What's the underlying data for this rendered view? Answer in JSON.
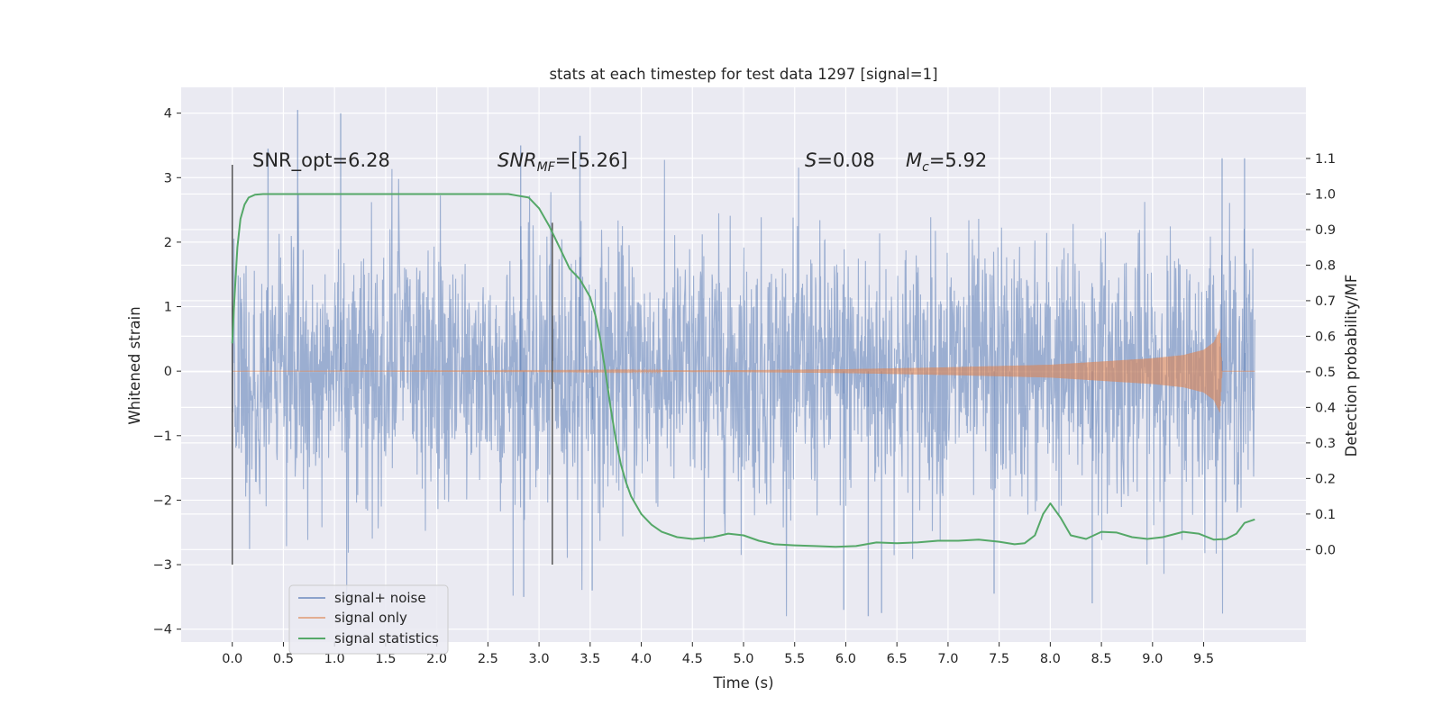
{
  "chart_data": {
    "type": "line",
    "title": "stats at each timestep for test data 1297 [signal=1]",
    "xlabel": "Time (s)",
    "ylabel": "Whitened strain",
    "y2label": "Detection probability/MF",
    "xlim": [
      -0.5,
      10.5
    ],
    "ylim": [
      -4.2,
      4.4
    ],
    "y2lim": [
      -0.26,
      1.3
    ],
    "x_ticks": [
      0.0,
      0.5,
      1.0,
      1.5,
      2.0,
      2.5,
      3.0,
      3.5,
      4.0,
      4.5,
      5.0,
      5.5,
      6.0,
      6.5,
      7.0,
      7.5,
      8.0,
      8.5,
      9.0,
      9.5
    ],
    "x_tick_labels": [
      "0.0",
      "0.5",
      "1.0",
      "1.5",
      "2.0",
      "2.5",
      "3.0",
      "3.5",
      "4.0",
      "4.5",
      "5.0",
      "5.5",
      "6.0",
      "6.5",
      "7.0",
      "7.5",
      "8.0",
      "8.5",
      "9.0",
      "9.5"
    ],
    "y_ticks": [
      4,
      3,
      2,
      1,
      0,
      -1,
      -2,
      -3,
      -4
    ],
    "y_tick_labels": [
      "4",
      "3",
      "2",
      "1",
      "0",
      "−1",
      "−2",
      "−3",
      "−4"
    ],
    "y2_ticks": [
      1.1,
      1.0,
      0.9,
      0.8,
      0.7,
      0.6,
      0.5,
      0.4,
      0.3,
      0.2,
      0.1,
      0.0
    ],
    "y2_tick_labels": [
      "1.1",
      "1.0",
      "0.9",
      "0.8",
      "0.7",
      "0.6",
      "0.5",
      "0.4",
      "0.3",
      "0.2",
      "0.1",
      "0.0"
    ],
    "grid": true,
    "legend_placement": "lower-left",
    "annotations": {
      "snr_opt": "SNR_opt=6.28",
      "snr_mf_prefix": "SNR",
      "snr_mf_sub": "MF",
      "snr_mf_suffix": "=[5.26]",
      "s_prefix": "S",
      "s_suffix": "=0.08",
      "mc_prefix": "M",
      "mc_sub": "c",
      "mc_suffix": "=5.92"
    },
    "vertical_markers": [
      {
        "x": 0.0,
        "y_from": -3.0,
        "y_to": 3.2
      },
      {
        "x": 3.13,
        "y_from": -3.0,
        "y_to": 2.3
      }
    ],
    "series": [
      {
        "name": "signal+ noise",
        "color": "#4c72b0",
        "axis": "left",
        "x_range": [
          0.0,
          10.0
        ],
        "envelope": {
          "typical_range": [
            -2.3,
            2.0
          ],
          "min": -3.8,
          "max": 4.05
        },
        "extremes": [
          {
            "x": 0.64,
            "y": 4.05
          },
          {
            "x": 1.06,
            "y": 4.0
          },
          {
            "x": 0.35,
            "y": 3.45
          },
          {
            "x": 2.82,
            "y": 3.5
          },
          {
            "x": 3.4,
            "y": 3.65
          },
          {
            "x": 9.68,
            "y": 3.3
          },
          {
            "x": 9.9,
            "y": 3.3
          },
          {
            "x": 6.22,
            "y": -3.8
          },
          {
            "x": 6.35,
            "y": -3.75
          },
          {
            "x": 3.52,
            "y": -3.4
          },
          {
            "x": 2.85,
            "y": -3.5
          },
          {
            "x": 8.41,
            "y": -3.6
          },
          {
            "x": 7.45,
            "y": -3.45
          },
          {
            "x": 5.98,
            "y": -3.7
          }
        ]
      },
      {
        "name": "signal only",
        "color": "#dd8452",
        "axis": "left",
        "x_range": [
          0.0,
          10.0
        ],
        "envelope_points": [
          [
            0.0,
            0.0
          ],
          [
            3.0,
            0.005
          ],
          [
            5.0,
            0.015
          ],
          [
            6.0,
            0.03
          ],
          [
            7.0,
            0.06
          ],
          [
            8.0,
            0.1
          ],
          [
            8.5,
            0.15
          ],
          [
            9.0,
            0.2
          ],
          [
            9.3,
            0.25
          ],
          [
            9.5,
            0.33
          ],
          [
            9.6,
            0.45
          ],
          [
            9.66,
            0.65
          ],
          [
            9.68,
            0.0
          ],
          [
            10.0,
            0.0
          ]
        ]
      },
      {
        "name": "signal statistics",
        "color": "#55a868",
        "axis": "right",
        "x": [
          0.0,
          0.02,
          0.05,
          0.08,
          0.12,
          0.16,
          0.22,
          0.3,
          0.5,
          1.0,
          1.5,
          2.0,
          2.5,
          2.7,
          2.9,
          3.0,
          3.1,
          3.2,
          3.3,
          3.4,
          3.5,
          3.55,
          3.6,
          3.65,
          3.7,
          3.75,
          3.8,
          3.85,
          3.9,
          4.0,
          4.1,
          4.2,
          4.35,
          4.5,
          4.7,
          4.85,
          5.0,
          5.15,
          5.3,
          5.5,
          5.7,
          5.9,
          6.1,
          6.3,
          6.5,
          6.7,
          6.9,
          7.1,
          7.3,
          7.5,
          7.65,
          7.75,
          7.85,
          7.93,
          8.0,
          8.1,
          8.2,
          8.35,
          8.5,
          8.65,
          8.8,
          8.95,
          9.1,
          9.3,
          9.45,
          9.6,
          9.72,
          9.82,
          9.9,
          10.0
        ],
        "y": [
          0.58,
          0.7,
          0.85,
          0.93,
          0.97,
          0.99,
          0.998,
          1.0,
          1.0,
          1.0,
          1.0,
          1.0,
          1.0,
          1.0,
          0.99,
          0.96,
          0.91,
          0.85,
          0.79,
          0.76,
          0.71,
          0.66,
          0.59,
          0.5,
          0.4,
          0.31,
          0.24,
          0.19,
          0.15,
          0.1,
          0.07,
          0.05,
          0.035,
          0.03,
          0.035,
          0.045,
          0.04,
          0.025,
          0.015,
          0.012,
          0.01,
          0.008,
          0.01,
          0.02,
          0.018,
          0.02,
          0.025,
          0.025,
          0.028,
          0.022,
          0.015,
          0.018,
          0.04,
          0.1,
          0.13,
          0.09,
          0.04,
          0.03,
          0.05,
          0.048,
          0.035,
          0.03,
          0.035,
          0.05,
          0.045,
          0.028,
          0.03,
          0.045,
          0.075,
          0.085
        ]
      }
    ]
  }
}
